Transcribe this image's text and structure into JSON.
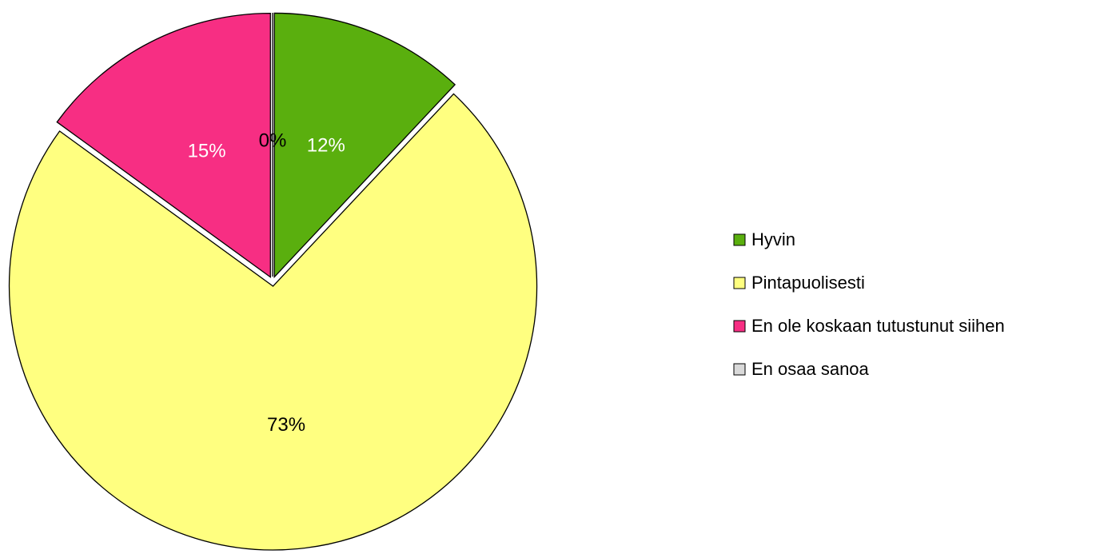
{
  "chart_data": {
    "type": "pie",
    "categories": [
      "Hyvin",
      "Pintapuolisesti",
      "En ole koskaan tutustunut siihen",
      "En osaa sanoa"
    ],
    "values": [
      12,
      73,
      15,
      0
    ],
    "value_labels": [
      "12%",
      "73%",
      "15%",
      "0%"
    ],
    "colors": [
      "#5aaf0e",
      "#ffff80",
      "#f72e83",
      "#d9d9d9"
    ],
    "label_colors": [
      "#ffffff",
      "#000000",
      "#ffffff",
      "#000000"
    ],
    "legend": "right"
  }
}
